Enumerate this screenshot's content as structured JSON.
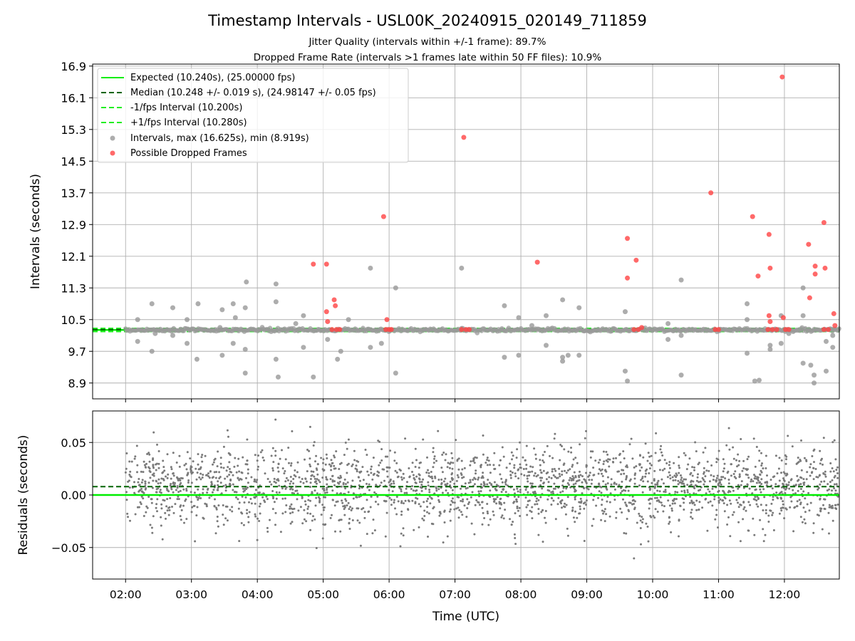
{
  "chart_data": [
    {
      "type": "scatter",
      "title": "Timestamp Intervals - USL00K_20240915_020149_711859",
      "subtitle_lines": [
        "Jitter Quality (intervals within +/-1 frame): 89.7%",
        "Dropped Frame Rate (intervals >1 frames late within 50 FF files): 10.9%"
      ],
      "ylabel": "Intervals (seconds)",
      "xlabel": "",
      "x_unit": "time-of-day UTC (hours)",
      "xlim": [
        "01:30",
        "12:50"
      ],
      "ylim": [
        8.5,
        16.95
      ],
      "yticks": [
        8.9,
        9.7,
        10.5,
        11.3,
        12.1,
        12.9,
        13.7,
        14.5,
        15.3,
        16.1,
        16.9
      ],
      "grid": true,
      "legend_position": "top-left",
      "legend": [
        "Expected (10.240s), (25.00000 fps)",
        "Median (10.248 +/- 0.019 s), (24.98147 +/- 0.05 fps)",
        "-1/fps Interval (10.200s)",
        "+1/fps Interval (10.280s)",
        "Intervals, max (16.625s), min (8.919s)",
        "Possible Dropped Frames"
      ],
      "reference_lines": {
        "expected": 10.24,
        "median": 10.248,
        "minus_one_frame": 10.2,
        "plus_one_frame": 10.28
      },
      "series": [
        {
          "name": "Possible Dropped Frames",
          "points": [
            [
              "04:51",
              11.9
            ],
            [
              "05:03",
              11.9
            ],
            [
              "05:03",
              10.7
            ],
            [
              "05:04",
              10.45
            ],
            [
              "05:10",
              11.0
            ],
            [
              "05:11",
              10.85
            ],
            [
              "05:08",
              10.25
            ],
            [
              "05:12",
              10.25
            ],
            [
              "05:15",
              10.25
            ],
            [
              "05:55",
              13.1
            ],
            [
              "05:58",
              10.5
            ],
            [
              "05:57",
              10.25
            ],
            [
              "06:00",
              10.25
            ],
            [
              "06:02",
              10.25
            ],
            [
              "07:08",
              15.1
            ],
            [
              "07:06",
              10.25
            ],
            [
              "07:10",
              10.25
            ],
            [
              "07:13",
              10.25
            ],
            [
              "08:15",
              11.95
            ],
            [
              "09:37",
              12.55
            ],
            [
              "09:37",
              11.55
            ],
            [
              "09:45",
              12.0
            ],
            [
              "09:43",
              10.25
            ],
            [
              "09:47",
              10.25
            ],
            [
              "09:50",
              10.3
            ],
            [
              "10:53",
              13.7
            ],
            [
              "10:57",
              10.25
            ],
            [
              "11:00",
              10.25
            ],
            [
              "11:31",
              13.1
            ],
            [
              "11:36",
              11.6
            ],
            [
              "11:46",
              12.65
            ],
            [
              "11:47",
              11.8
            ],
            [
              "11:46",
              10.6
            ],
            [
              "11:47",
              10.45
            ],
            [
              "11:45",
              10.25
            ],
            [
              "11:49",
              10.25
            ],
            [
              "11:53",
              10.25
            ],
            [
              "11:58",
              16.625
            ],
            [
              "11:59",
              10.55
            ],
            [
              "12:01",
              10.25
            ],
            [
              "12:04",
              10.25
            ],
            [
              "12:22",
              12.4
            ],
            [
              "12:23",
              11.05
            ],
            [
              "12:28",
              11.85
            ],
            [
              "12:28",
              11.65
            ],
            [
              "12:36",
              12.95
            ],
            [
              "12:37",
              11.8
            ],
            [
              "12:45",
              10.65
            ],
            [
              "12:46",
              10.35
            ],
            [
              "12:36",
              10.25
            ],
            [
              "12:40",
              10.25
            ]
          ]
        },
        {
          "name": "Intervals, max (16.625s), min (8.919s)",
          "points": [
            [
              "02:11",
              10.5
            ],
            [
              "02:11",
              9.95
            ],
            [
              "02:24",
              10.9
            ],
            [
              "02:24",
              9.7
            ],
            [
              "02:27",
              10.15
            ],
            [
              "02:43",
              10.8
            ],
            [
              "02:43",
              10.1
            ],
            [
              "02:56",
              10.5
            ],
            [
              "02:56",
              9.9
            ],
            [
              "03:05",
              9.5
            ],
            [
              "03:06",
              10.9
            ],
            [
              "03:26",
              10.3
            ],
            [
              "03:28",
              10.75
            ],
            [
              "03:28",
              9.6
            ],
            [
              "03:38",
              10.9
            ],
            [
              "03:38",
              9.9
            ],
            [
              "03:40",
              10.55
            ],
            [
              "03:49",
              10.8
            ],
            [
              "03:49",
              9.75
            ],
            [
              "03:49",
              9.15
            ],
            [
              "03:50",
              11.45
            ],
            [
              "04:17",
              10.95
            ],
            [
              "04:17",
              11.4
            ],
            [
              "04:17",
              9.5
            ],
            [
              "04:19",
              9.05
            ],
            [
              "04:35",
              10.4
            ],
            [
              "04:42",
              10.6
            ],
            [
              "04:42",
              9.8
            ],
            [
              "04:51",
              9.05
            ],
            [
              "05:04",
              10.0
            ],
            [
              "05:13",
              9.5
            ],
            [
              "05:16",
              9.7
            ],
            [
              "05:23",
              10.5
            ],
            [
              "05:43",
              11.8
            ],
            [
              "05:43",
              9.8
            ],
            [
              "05:53",
              9.9
            ],
            [
              "06:06",
              11.3
            ],
            [
              "06:06",
              9.15
            ],
            [
              "07:06",
              11.8
            ],
            [
              "07:45",
              10.85
            ],
            [
              "07:45",
              9.55
            ],
            [
              "07:58",
              10.55
            ],
            [
              "07:58",
              9.6
            ],
            [
              "08:10",
              10.35
            ],
            [
              "08:23",
              10.6
            ],
            [
              "08:23",
              9.85
            ],
            [
              "08:38",
              11.0
            ],
            [
              "08:38",
              9.55
            ],
            [
              "08:38",
              9.45
            ],
            [
              "08:43",
              9.6
            ],
            [
              "08:53",
              10.8
            ],
            [
              "08:53",
              9.6
            ],
            [
              "09:35",
              10.7
            ],
            [
              "09:35",
              9.2
            ],
            [
              "09:37",
              8.95
            ],
            [
              "10:14",
              10.4
            ],
            [
              "10:14",
              10.0
            ],
            [
              "10:26",
              11.5
            ],
            [
              "10:26",
              9.1
            ],
            [
              "10:26",
              10.1
            ],
            [
              "11:26",
              10.9
            ],
            [
              "11:26",
              10.5
            ],
            [
              "11:26",
              9.65
            ],
            [
              "11:33",
              8.95
            ],
            [
              "11:37",
              8.97
            ],
            [
              "11:47",
              9.85
            ],
            [
              "11:47",
              9.75
            ],
            [
              "11:57",
              10.6
            ],
            [
              "11:57",
              9.9
            ],
            [
              "12:04",
              10.15
            ],
            [
              "12:17",
              11.3
            ],
            [
              "12:17",
              10.6
            ],
            [
              "12:17",
              9.4
            ],
            [
              "12:24",
              9.35
            ],
            [
              "12:27",
              9.1
            ],
            [
              "12:27",
              8.9
            ],
            [
              "12:38",
              9.2
            ],
            [
              "12:38",
              9.95
            ],
            [
              "12:44",
              9.8
            ],
            [
              "12:44",
              10.1
            ]
          ]
        }
      ]
    },
    {
      "type": "scatter",
      "title": "",
      "xlabel": "Time (UTC)",
      "ylabel": "Residuals (seconds)",
      "xlim": [
        "01:30",
        "12:50"
      ],
      "ylim": [
        -0.08,
        0.08
      ],
      "yticks": [
        -0.05,
        0.0,
        0.05
      ],
      "ytick_labels": [
        "−0.05",
        "0.00",
        "0.05"
      ],
      "xticks": [
        "02:00",
        "03:00",
        "04:00",
        "05:00",
        "06:00",
        "07:00",
        "08:00",
        "09:00",
        "10:00",
        "11:00",
        "12:00"
      ],
      "grid": true,
      "reference_lines": {
        "expected": 0.0,
        "median": 0.008
      },
      "series": [
        {
          "name": "",
          "count": 2400,
          "distribution": {
            "mean": 0.008,
            "std": 0.019,
            "min": -0.075,
            "max": 0.078
          },
          "x_range": [
            "02:00",
            "12:50"
          ]
        }
      ]
    }
  ],
  "colors": {
    "expected": "#00ee00",
    "median": "#006400",
    "fps_bounds": "#22ee22",
    "intervals": "#999999",
    "dropped": "#ff4444",
    "residuals": "#7a7a7a",
    "grid": "#b0b0b0"
  }
}
